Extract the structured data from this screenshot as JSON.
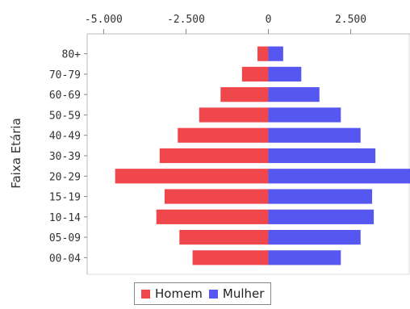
{
  "chart_data": {
    "type": "bar",
    "orientation": "horizontal",
    "subtype": "population-pyramid",
    "ylabel": "Faixa Etária",
    "xlabel": "",
    "xlim": [
      -5500,
      4300
    ],
    "x_ticks": [
      -5000,
      -2500,
      0,
      2500
    ],
    "x_tick_labels": [
      "-5.000",
      "-2.500",
      "0",
      "2.500"
    ],
    "categories": [
      "80+",
      "70-79",
      "60-69",
      "50-59",
      "40-49",
      "30-39",
      "20-29",
      "15-19",
      "10-14",
      "05-09",
      "00-04"
    ],
    "series": [
      {
        "name": "Homem",
        "color": "#f0474c",
        "values": [
          -330,
          -800,
          -1450,
          -2100,
          -2750,
          -3300,
          -4650,
          -3150,
          -3400,
          -2700,
          -2300
        ]
      },
      {
        "name": "Mulher",
        "color": "#5656f0",
        "values": [
          450,
          1000,
          1550,
          2200,
          2800,
          3250,
          4400,
          3150,
          3200,
          2800,
          2200
        ]
      }
    ],
    "legend_position": "bottom",
    "grid": false
  }
}
